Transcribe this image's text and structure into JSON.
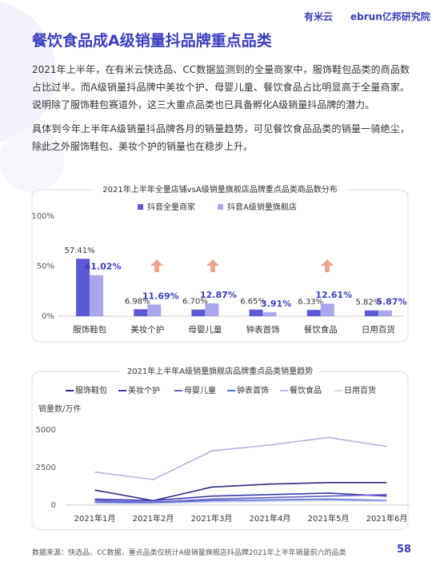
{
  "header": {
    "logo1": "有米云",
    "logo2": "ebrun亿邦研究院"
  },
  "title": "餐饮食品成A级销量抖品牌重点品类",
  "paragraphs": [
    "2021年上半年，在有米云快选品、CC数据监测到的全量商家中，服饰鞋包品类的商品数占比过半。而A级销量抖品牌中美妆个护、母婴儿童、餐饮食品占比明显高于全量商家。说明除了服饰鞋包赛道外，这三大重点品类也已具备孵化A级销量抖品牌的潜力。",
    "具体到今年上半年A级销量抖品牌各月的销量趋势，可见餐饮食品品类的销量一骑绝尘，除此之外服饰鞋包、美妆个护的销量也在稳步上升。"
  ],
  "chart_data": [
    {
      "type": "bar",
      "title": "2021年上半年全量店铺vsA级销量旗舰店品牌重点品类商品数分布",
      "categories": [
        "服饰鞋包",
        "美妆个护",
        "母婴儿童",
        "钟表首饰",
        "餐饮食品",
        "日用百货"
      ],
      "series": [
        {
          "name": "抖音全量商家",
          "color": "#5b5bd6",
          "values": [
            57.41,
            6.98,
            6.7,
            6.65,
            6.33,
            5.82
          ],
          "value_labels": [
            "57.41%",
            "6.98%",
            "6.70%",
            "6.65%",
            "6.33%",
            "5.82%"
          ]
        },
        {
          "name": "抖音A级销量旗舰店",
          "color": "#a9a6ee",
          "values": [
            41.02,
            11.69,
            12.87,
            3.91,
            12.61,
            5.87
          ],
          "value_labels": [
            "41.02%",
            "11.69%",
            "12.87%",
            "3.91%",
            "12.61%",
            "5.87%"
          ]
        }
      ],
      "ylim": [
        0,
        100
      ],
      "yticks": [
        {
          "value": 0,
          "label": "0%"
        },
        {
          "value": 50,
          "label": "50%"
        },
        {
          "value": 100,
          "label": "100%"
        }
      ]
    },
    {
      "type": "line",
      "title": "2021年上半年A级销量旗舰店品牌重点品类销量趋势",
      "y_label": "销量数/万件",
      "categories": [
        "2021年1月",
        "2021年2月",
        "2021年3月",
        "2021年4月",
        "2021年5月",
        "2021年6月"
      ],
      "series": [
        {
          "name": "服饰鞋包",
          "color": "#2c2c85",
          "values": [
            1000,
            300,
            1200,
            1400,
            1500,
            1500
          ]
        },
        {
          "name": "美妆个护",
          "color": "#3a3ab0",
          "values": [
            400,
            300,
            600,
            700,
            800,
            600
          ]
        },
        {
          "name": "母婴儿童",
          "color": "#6a5acd",
          "values": [
            300,
            200,
            400,
            500,
            600,
            700
          ]
        },
        {
          "name": "钟表首饰",
          "color": "#4b6fd6",
          "values": [
            200,
            150,
            300,
            350,
            400,
            300
          ]
        },
        {
          "name": "餐饮食品",
          "color": "#b6b2e4",
          "values": [
            2200,
            1700,
            3600,
            4000,
            4500,
            3900
          ]
        },
        {
          "name": "日用百货",
          "color": "#d3d0f2",
          "values": [
            100,
            100,
            200,
            250,
            300,
            250
          ]
        }
      ],
      "ylim": [
        0,
        5000
      ],
      "yticks": [
        0,
        2500,
        5000
      ]
    }
  ],
  "footer": {
    "source": "数据来源：快选品、CC数据，重点品类仅统计A级销量旗舰店抖品牌2021年上半年销量前六的品类",
    "page": "58"
  }
}
